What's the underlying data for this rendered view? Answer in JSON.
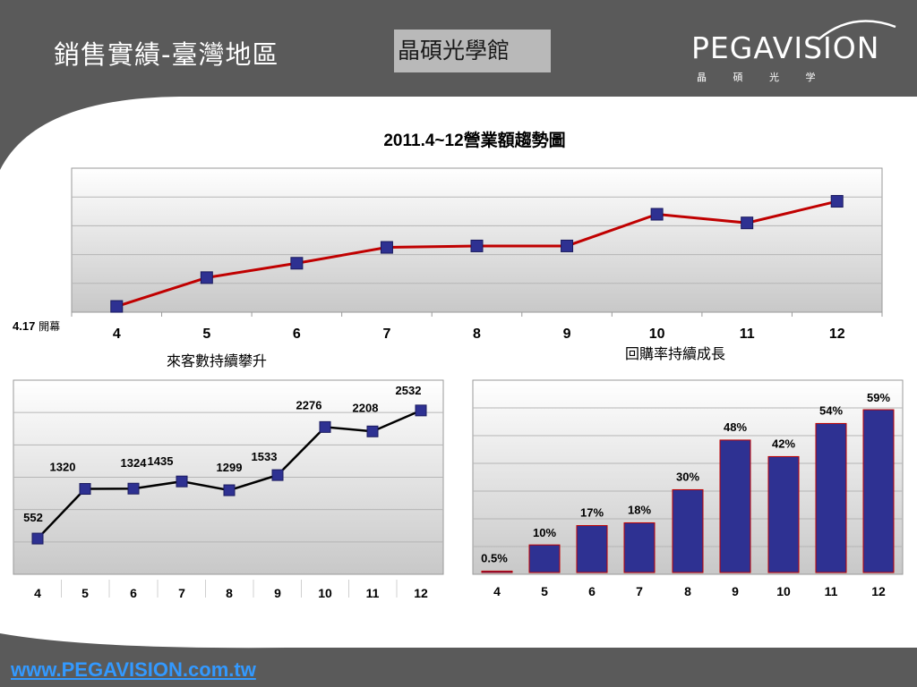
{
  "header": {
    "title": "銷售實績-臺灣地區",
    "store_badge": "晶碩光學館",
    "logo_text": "PEGAVISION",
    "logo_subtitle": "晶 碩 光 学"
  },
  "colors": {
    "header_bg": "#5a5a5a",
    "sales_line": "#c00000",
    "marker": "#2e3192",
    "bar": "#2e3192",
    "link": "#3399ff"
  },
  "opening_note": {
    "date": "4.17",
    "label": "開幕"
  },
  "footer": {
    "website": "www.PEGAVISION.com.tw"
  },
  "chart_data": [
    {
      "type": "line",
      "title": "2011.4~12營業額趨勢圖",
      "categories": [
        "4",
        "5",
        "6",
        "7",
        "8",
        "9",
        "10",
        "11",
        "12"
      ],
      "values": [
        0.2,
        1.2,
        1.7,
        2.25,
        2.3,
        2.3,
        3.4,
        3.1,
        3.85
      ],
      "ylim": [
        0,
        5
      ],
      "grid": true,
      "ytick_labels_shown": false
    },
    {
      "type": "line",
      "title": "來客數持續攀升",
      "categories": [
        "4",
        "5",
        "6",
        "7",
        "8",
        "9",
        "10",
        "11",
        "12"
      ],
      "values": [
        552,
        1320,
        1324,
        1435,
        1299,
        1533,
        2276,
        2208,
        2532
      ],
      "data_labels": [
        "552",
        "1320",
        "1324",
        "1435",
        "1299",
        "1533",
        "2276",
        "2208",
        "2532"
      ],
      "ylim": [
        0,
        3000
      ],
      "grid": true
    },
    {
      "type": "bar",
      "title": "回購率持續成長",
      "categories": [
        "4",
        "5",
        "6",
        "7",
        "8",
        "9",
        "10",
        "11",
        "12"
      ],
      "values": [
        0.5,
        10,
        17,
        18,
        30,
        48,
        42,
        54,
        59
      ],
      "data_labels": [
        "0.5%",
        "10%",
        "17%",
        "18%",
        "30%",
        "48%",
        "42%",
        "54%",
        "59%"
      ],
      "ylim": [
        0,
        60
      ],
      "grid": true
    }
  ]
}
